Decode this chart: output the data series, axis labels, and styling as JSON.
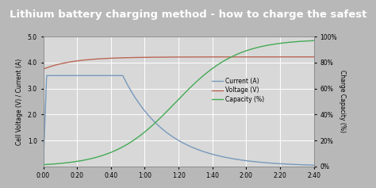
{
  "title": "Lithium battery charging method - how to charge the safest",
  "title_bg": "#2a2a2a",
  "title_color": "#ffffff",
  "title_fontsize": 9.5,
  "plot_bg": "#d8d8d8",
  "outer_bg": "#b8b8b8",
  "grid_color": "#bbbbbb",
  "ylabel_left": "Cell Voltage (V) / Current (A)",
  "ylabel_right": "Charge Capacity (%)",
  "ylim_left": [
    0,
    5.0
  ],
  "ylim_right": [
    0,
    100
  ],
  "yticks_left": [
    1.0,
    2.0,
    3.0,
    4.0,
    5.0
  ],
  "yticks_right": [
    0,
    20,
    40,
    60,
    80,
    100
  ],
  "xtick_labels": [
    "0:00",
    "0:20",
    "0:40",
    "1:00",
    "1:20",
    "1:40",
    "2:00",
    "2:20",
    "2:40"
  ],
  "xtick_values": [
    0,
    20,
    40,
    60,
    80,
    100,
    120,
    140,
    160
  ],
  "xlim": [
    0,
    160
  ],
  "current_color": "#7799bb",
  "voltage_color": "#bb6655",
  "capacity_color": "#44aa55",
  "legend_labels": [
    "Current (A)",
    "Voltage (V)",
    "Capacity (%)"
  ],
  "font_size_axis": 5.5,
  "font_size_tick": 5.5,
  "font_size_legend": 5.5
}
